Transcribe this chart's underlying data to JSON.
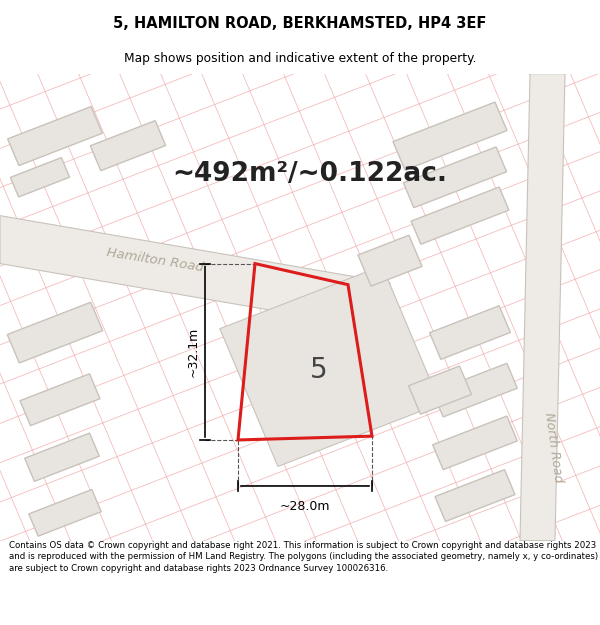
{
  "title": "5, HAMILTON ROAD, BERKHAMSTED, HP4 3EF",
  "subtitle": "Map shows position and indicative extent of the property.",
  "area_text": "~492m²/~0.122ac.",
  "property_number": "5",
  "dim_width": "~28.0m",
  "dim_height": "~32.1m",
  "road_label": "Hamilton Road",
  "road2_label": "North Road",
  "bg_color": "#ffffff",
  "building_fill": "#e8e5e0",
  "building_stroke": "#c8c2ba",
  "road_fill": "#eeebe6",
  "road_stroke": "#c8c2ba",
  "red_outline": "#dd1c1c",
  "line_color": "#f0a0a0",
  "footer_text": "Contains OS data © Crown copyright and database right 2021. This information is subject to Crown copyright and database rights 2023 and is reproduced with the permission of HM Land Registry. The polygons (including the associated geometry, namely x, y co-ordinates) are subject to Crown copyright and database rights 2023 Ordnance Survey 100026316."
}
